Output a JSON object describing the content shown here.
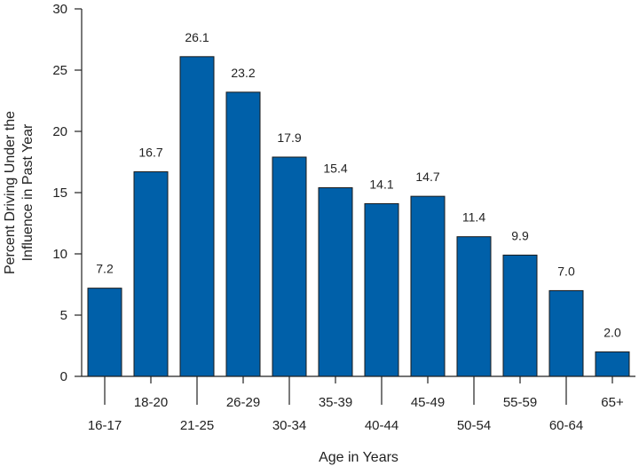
{
  "chart_data": {
    "type": "bar",
    "title": "",
    "xlabel": "Age in Years",
    "ylabel_lines": [
      "Percent Driving Under the",
      "Influence in Past Year"
    ],
    "categories": [
      "16-17",
      "18-20",
      "21-25",
      "26-29",
      "30-34",
      "35-39",
      "40-44",
      "45-49",
      "50-54",
      "55-59",
      "60-64",
      "65+"
    ],
    "values": [
      7.2,
      16.7,
      26.1,
      23.2,
      17.9,
      15.4,
      14.1,
      14.7,
      11.4,
      9.9,
      7.0,
      2.0
    ],
    "value_labels": [
      "7.2",
      "16.7",
      "26.1",
      "23.2",
      "17.9",
      "15.4",
      "14.1",
      "14.7",
      "11.4",
      "9.9",
      "7.0",
      "2.0"
    ],
    "ylim": [
      0,
      30
    ],
    "yticks": [
      0,
      5,
      10,
      15,
      20,
      25,
      30
    ],
    "grid": false,
    "bar_color": "#0060A9"
  }
}
